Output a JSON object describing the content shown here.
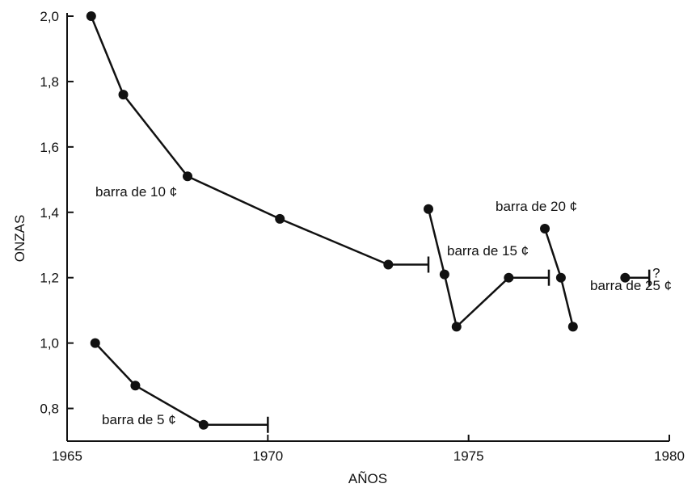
{
  "chart_data": {
    "type": "line",
    "xlabel": "AÑOS",
    "ylabel": "ONZAS",
    "xlim": [
      1965,
      1980
    ],
    "ylim": [
      0.7,
      2.0
    ],
    "x_ticks": [
      1965,
      1970,
      1975,
      1980
    ],
    "x_tick_labels": [
      "1965",
      "1970",
      "1975",
      "1980"
    ],
    "y_ticks": [
      0.8,
      1.0,
      1.2,
      1.4,
      1.6,
      1.8,
      2.0
    ],
    "y_tick_labels": [
      "0,8",
      "1,0",
      "1,2",
      "1,4",
      "1,6",
      "1,8",
      "2,0"
    ],
    "grid": false,
    "series": [
      {
        "name": "barra de 5 ¢",
        "points": [
          [
            1965.7,
            1.0
          ],
          [
            1966.7,
            0.87
          ],
          [
            1968.4,
            0.75
          ]
        ],
        "end_x": 1970.0,
        "end_y": 0.75
      },
      {
        "name": "barra de 10 ¢",
        "points": [
          [
            1965.6,
            2.0
          ],
          [
            1966.4,
            1.76
          ],
          [
            1968.0,
            1.51
          ],
          [
            1970.3,
            1.38
          ],
          [
            1973.0,
            1.24
          ]
        ],
        "end_x": 1974.0,
        "end_y": 1.24
      },
      {
        "name": "barra de 15 ¢",
        "points": [
          [
            1974.0,
            1.41
          ],
          [
            1974.4,
            1.21
          ],
          [
            1974.7,
            1.05
          ],
          [
            1976.0,
            1.2
          ]
        ],
        "end_x": 1977.0,
        "end_y": 1.2
      },
      {
        "name": "barra de 20 ¢",
        "points": [
          [
            1976.9,
            1.35
          ],
          [
            1977.3,
            1.2
          ],
          [
            1977.6,
            1.05
          ]
        ]
      },
      {
        "name": "barra de 25 ¢",
        "points": [
          [
            1978.9,
            1.2
          ]
        ],
        "end_x": 1979.5,
        "end_y": 1.2,
        "annotation": "?"
      }
    ]
  }
}
